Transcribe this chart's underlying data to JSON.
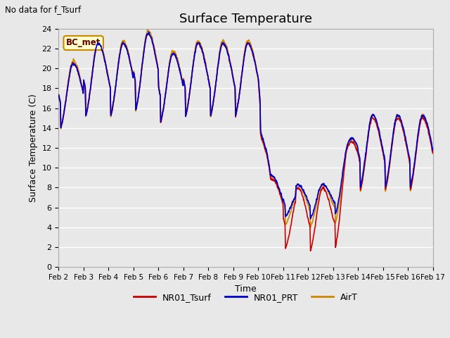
{
  "title": "Surface Temperature",
  "xlabel": "Time",
  "ylabel": "Surface Temperature (C)",
  "annotation_top_left": "No data for f_Tsurf",
  "legend_box_label": "BC_met",
  "ylim": [
    0,
    24
  ],
  "yticks": [
    0,
    2,
    4,
    6,
    8,
    10,
    12,
    14,
    16,
    18,
    20,
    22,
    24
  ],
  "xtick_labels": [
    "Feb 2",
    "Feb 3",
    "Feb 4",
    "Feb 5",
    "Feb 6",
    "Feb 7",
    "Feb 8",
    "Feb 9",
    "Feb 10",
    "Feb 11",
    "Feb 12",
    "Feb 13",
    "Feb 14",
    "Feb 15",
    "Feb 16",
    "Feb 17"
  ],
  "line_colors": {
    "NR01_Tsurf": "#cc0000",
    "NR01_PRT": "#0000cc",
    "AirT": "#cc8800"
  },
  "background_color": "#e8e8e8",
  "grid_color": "#ffffff",
  "title_fontsize": 13,
  "axis_fontsize": 9,
  "legend_box_color": "#ffffcc",
  "legend_box_border": "#cc8800",
  "fig_facecolor": "#e8e8e8"
}
